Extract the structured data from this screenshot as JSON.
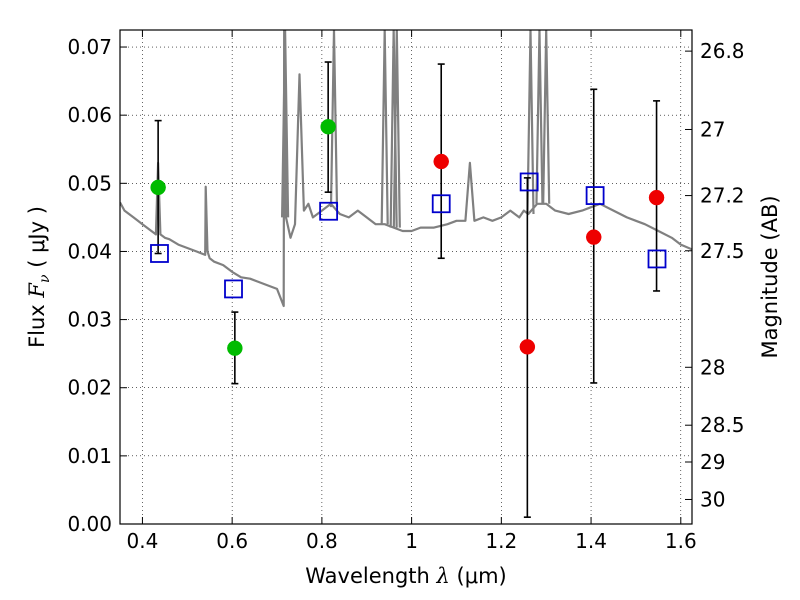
{
  "chart_data": {
    "type": "scatter",
    "xlabel": {
      "prefix": "Wavelength",
      "symbol": "λ",
      "unit": "(μm)"
    },
    "ylabel": {
      "prefix": "Flux",
      "symbol": "F",
      "subscript": "ν",
      "unit": "( μJy )"
    },
    "y2label": "Magnitude (AB)",
    "xlim": [
      0.35,
      1.625
    ],
    "ylim": [
      0.0,
      0.0725
    ],
    "grid": true,
    "x_ticks": [
      0.4,
      0.6,
      0.8,
      1.0,
      1.2,
      1.4,
      1.6
    ],
    "x_tick_labels": [
      "0.4",
      "0.6",
      "0.8",
      "1",
      "1.2",
      "1.4",
      "1.6"
    ],
    "y_ticks": [
      0.0,
      0.01,
      0.02,
      0.03,
      0.04,
      0.05,
      0.06,
      0.07
    ],
    "y_tick_labels": [
      "0.00",
      "0.01",
      "0.02",
      "0.03",
      "0.04",
      "0.05",
      "0.06",
      "0.07"
    ],
    "right_ticks": [
      {
        "flux": 0.0694,
        "label": "26.8"
      },
      {
        "flux": 0.0579,
        "label": "27"
      },
      {
        "flux": 0.0482,
        "label": "27.2"
      },
      {
        "flux": 0.0401,
        "label": "27.5"
      },
      {
        "flux": 0.023,
        "label": "28"
      },
      {
        "flux": 0.0145,
        "label": "28.5"
      },
      {
        "flux": 0.0091,
        "label": "29"
      },
      {
        "flux": 0.0036,
        "label": "30"
      }
    ],
    "colors": {
      "model": "#808080",
      "model_points": "#0000cc",
      "green": "#00bb00",
      "red": "#ee0000",
      "errorbar": "#000000"
    },
    "model_spectrum": {
      "x": [
        0.35,
        0.36,
        0.37,
        0.38,
        0.39,
        0.4,
        0.41,
        0.42,
        0.43,
        0.435,
        0.44,
        0.45,
        0.46,
        0.48,
        0.5,
        0.52,
        0.54,
        0.541,
        0.545,
        0.55,
        0.56,
        0.58,
        0.6,
        0.62,
        0.64,
        0.66,
        0.68,
        0.7,
        0.715,
        0.716,
        0.72,
        0.73,
        0.74,
        0.75,
        0.76,
        0.77,
        0.78,
        0.8,
        0.82,
        0.84,
        0.86,
        0.88,
        0.9,
        0.92,
        0.94,
        0.96,
        0.98,
        1.0,
        1.02,
        1.05,
        1.08,
        1.1,
        1.12,
        1.13,
        1.14,
        1.16,
        1.18,
        1.2,
        1.22,
        1.24,
        1.25,
        1.26,
        1.28,
        1.3,
        1.32,
        1.35,
        1.38,
        1.4,
        1.42,
        1.45,
        1.48,
        1.5,
        1.52,
        1.55,
        1.58,
        1.6,
        1.625
      ],
      "y": [
        0.0472,
        0.046,
        0.0455,
        0.045,
        0.0445,
        0.044,
        0.0435,
        0.043,
        0.0425,
        0.053,
        0.0425,
        0.042,
        0.0418,
        0.041,
        0.0405,
        0.04,
        0.0395,
        0.0495,
        0.04,
        0.039,
        0.0385,
        0.038,
        0.037,
        0.0362,
        0.036,
        0.0355,
        0.035,
        0.0345,
        0.032,
        0.075,
        0.045,
        0.042,
        0.044,
        0.066,
        0.046,
        0.047,
        0.045,
        0.046,
        0.047,
        0.0455,
        0.045,
        0.046,
        0.045,
        0.044,
        0.044,
        0.0435,
        0.043,
        0.043,
        0.0435,
        0.0435,
        0.044,
        0.0445,
        0.0445,
        0.053,
        0.0445,
        0.045,
        0.0445,
        0.045,
        0.046,
        0.045,
        0.046,
        0.0455,
        0.047,
        0.047,
        0.046,
        0.0455,
        0.046,
        0.0465,
        0.047,
        0.046,
        0.045,
        0.0445,
        0.044,
        0.043,
        0.042,
        0.041,
        0.0403
      ]
    },
    "emission_lines": [
      {
        "x": 0.718,
        "base": 0.045,
        "peak": 0.0725
      },
      {
        "x": 0.827,
        "base": 0.0465,
        "peak": 0.0725
      },
      {
        "x": 0.94,
        "base": 0.044,
        "peak": 0.0725
      },
      {
        "x": 0.96,
        "base": 0.0435,
        "peak": 0.0725
      },
      {
        "x": 0.967,
        "base": 0.0435,
        "peak": 0.0725
      },
      {
        "x": 1.265,
        "base": 0.0455,
        "peak": 0.0725
      },
      {
        "x": 1.285,
        "base": 0.047,
        "peak": 0.0725
      },
      {
        "x": 1.3,
        "base": 0.047,
        "peak": 0.0725
      }
    ],
    "model_points": [
      {
        "x": 0.438,
        "y": 0.0397
      },
      {
        "x": 0.603,
        "y": 0.0345
      },
      {
        "x": 0.815,
        "y": 0.0459
      },
      {
        "x": 1.066,
        "y": 0.047
      },
      {
        "x": 1.262,
        "y": 0.0502
      },
      {
        "x": 1.409,
        "y": 0.0482
      },
      {
        "x": 1.547,
        "y": 0.0389
      }
    ],
    "observed": [
      {
        "x": 0.435,
        "y": 0.0494,
        "lo": 0.0397,
        "hi": 0.0592,
        "group": "green"
      },
      {
        "x": 0.606,
        "y": 0.0258,
        "lo": 0.0206,
        "hi": 0.0311,
        "group": "green"
      },
      {
        "x": 0.814,
        "y": 0.0583,
        "lo": 0.0487,
        "hi": 0.0678,
        "group": "green"
      },
      {
        "x": 1.066,
        "y": 0.0532,
        "lo": 0.039,
        "hi": 0.0675,
        "group": "red"
      },
      {
        "x": 1.258,
        "y": 0.026,
        "lo": 0.001,
        "hi": 0.0508,
        "group": "red"
      },
      {
        "x": 1.406,
        "y": 0.0421,
        "lo": 0.0207,
        "hi": 0.0638,
        "group": "red"
      },
      {
        "x": 1.546,
        "y": 0.0479,
        "lo": 0.0342,
        "hi": 0.0621,
        "group": "red"
      }
    ]
  }
}
